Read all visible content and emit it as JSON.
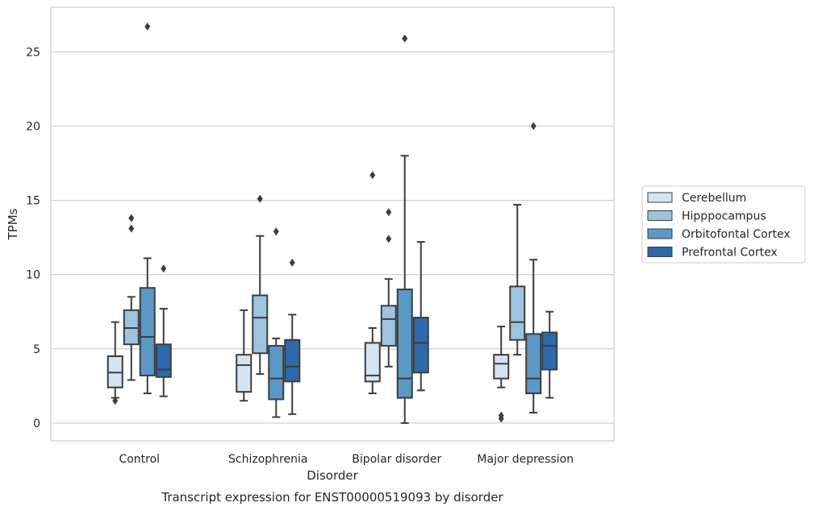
{
  "chart_data": {
    "type": "boxplot",
    "title": "",
    "caption": "Transcript expression for ENST00000519093 by disorder",
    "xlabel": "Disorder",
    "ylabel": "TPMs",
    "ylim": [
      -1.2,
      28.0
    ],
    "yticks": [
      0,
      5,
      10,
      15,
      20,
      25
    ],
    "grid": "horizontal",
    "legend_position": "right",
    "categories": [
      "Control",
      "Schizophrenia",
      "Bipolar disorder",
      "Major depression"
    ],
    "series": [
      {
        "name": "Cerebellum",
        "color": "#d5e4f2",
        "boxes": [
          {
            "whislo": 1.7,
            "q1": 2.4,
            "med": 3.4,
            "q3": 4.5,
            "whishi": 6.8,
            "fliers": [
              1.5
            ]
          },
          {
            "whislo": 1.5,
            "q1": 2.1,
            "med": 3.9,
            "q3": 4.6,
            "whishi": 7.6,
            "fliers": []
          },
          {
            "whislo": 2.0,
            "q1": 2.8,
            "med": 3.2,
            "q3": 5.4,
            "whishi": 6.4,
            "fliers": [
              16.7
            ]
          },
          {
            "whislo": 2.4,
            "q1": 3.0,
            "med": 4.0,
            "q3": 4.6,
            "whishi": 6.5,
            "fliers": [
              0.5,
              0.3
            ]
          }
        ]
      },
      {
        "name": "Hipppocampus",
        "color": "#9bc4de",
        "boxes": [
          {
            "whislo": 2.9,
            "q1": 5.3,
            "med": 6.4,
            "q3": 7.6,
            "whishi": 8.5,
            "fliers": [
              13.8,
              13.1
            ]
          },
          {
            "whislo": 3.3,
            "q1": 4.7,
            "med": 7.1,
            "q3": 8.6,
            "whishi": 12.6,
            "fliers": [
              15.1
            ]
          },
          {
            "whislo": 3.8,
            "q1": 5.2,
            "med": 7.0,
            "q3": 7.9,
            "whishi": 9.7,
            "fliers": [
              14.2,
              12.4
            ]
          },
          {
            "whislo": 4.6,
            "q1": 5.6,
            "med": 6.8,
            "q3": 9.2,
            "whishi": 14.7,
            "fliers": []
          }
        ]
      },
      {
        "name": "Orbitofontal Cortex",
        "color": "#5a98c6",
        "boxes": [
          {
            "whislo": 2.0,
            "q1": 3.2,
            "med": 5.8,
            "q3": 9.1,
            "whishi": 11.1,
            "fliers": [
              26.7
            ]
          },
          {
            "whislo": 0.4,
            "q1": 1.6,
            "med": 3.0,
            "q3": 5.2,
            "whishi": 5.7,
            "fliers": [
              12.9
            ]
          },
          {
            "whislo": 0.0,
            "q1": 1.7,
            "med": 3.0,
            "q3": 9.0,
            "whishi": 18.0,
            "fliers": [
              25.9
            ]
          },
          {
            "whislo": 0.7,
            "q1": 2.0,
            "med": 3.0,
            "q3": 6.0,
            "whishi": 11.0,
            "fliers": [
              20.0
            ]
          }
        ]
      },
      {
        "name": "Prefrontal Cortex",
        "color": "#2c6aad",
        "boxes": [
          {
            "whislo": 1.8,
            "q1": 3.1,
            "med": 3.6,
            "q3": 5.3,
            "whishi": 7.7,
            "fliers": [
              10.4
            ]
          },
          {
            "whislo": 0.6,
            "q1": 2.8,
            "med": 3.8,
            "q3": 5.6,
            "whishi": 7.3,
            "fliers": [
              10.8
            ]
          },
          {
            "whislo": 2.2,
            "q1": 3.4,
            "med": 5.4,
            "q3": 7.1,
            "whishi": 12.2,
            "fliers": []
          },
          {
            "whislo": 1.7,
            "q1": 3.6,
            "med": 5.2,
            "q3": 6.1,
            "whishi": 7.5,
            "fliers": []
          }
        ]
      }
    ]
  },
  "colors": {
    "grid": "#cccccc",
    "frame": "#cccccc",
    "line": "#3d3d3d",
    "text": "#262626"
  }
}
